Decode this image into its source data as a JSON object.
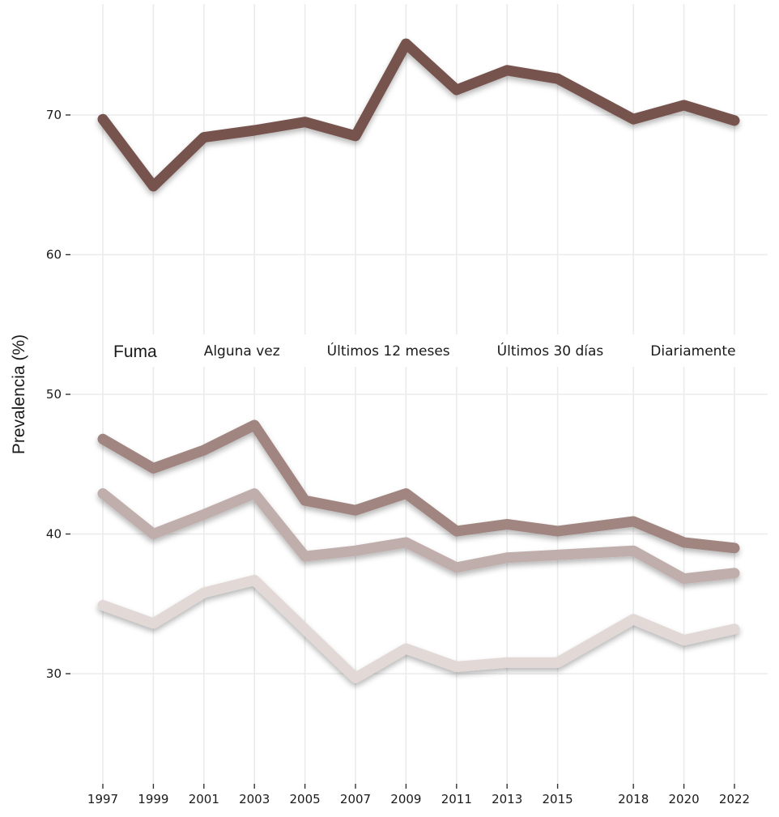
{
  "chart_data": {
    "type": "line",
    "title": "",
    "xlabel": "",
    "ylabel": "Prevalencia (%)",
    "ylim": [
      23,
      78
    ],
    "yticks": [
      30,
      40,
      50,
      60,
      70
    ],
    "xlim": [
      1997,
      2022
    ],
    "x": [
      1997,
      1999,
      2001,
      2003,
      2005,
      2007,
      2009,
      2011,
      2013,
      2015,
      2018,
      2020,
      2022
    ],
    "x_tick_labels": [
      "1997",
      "1999",
      "2001",
      "2003",
      "2005",
      "2007",
      "2009",
      "2011",
      "2013",
      "2015",
      "2018",
      "2020",
      "2022"
    ],
    "y_tick_labels": [
      "30",
      "40",
      "50",
      "60",
      "70"
    ],
    "grid": true,
    "legend": {
      "title": "Fuma",
      "placement": "center"
    },
    "series": [
      {
        "name": "Alguna vez",
        "color": "#76534e",
        "values": [
          69.7,
          64.9,
          68.4,
          68.9,
          69.5,
          68.5,
          75.1,
          71.8,
          73.2,
          72.6,
          69.7,
          70.7,
          69.6
        ]
      },
      {
        "name": "Últimos 12 meses",
        "color": "#a08580",
        "values": [
          46.8,
          44.7,
          46.0,
          47.8,
          42.4,
          41.7,
          42.9,
          40.2,
          40.7,
          40.2,
          40.9,
          39.4,
          39.0
        ]
      },
      {
        "name": "Últimos 30 días",
        "color": "#bfaeab",
        "values": [
          42.9,
          40.0,
          41.4,
          42.9,
          38.4,
          38.8,
          39.4,
          37.6,
          38.3,
          38.5,
          38.8,
          36.8,
          37.2
        ]
      },
      {
        "name": "Diariamente",
        "color": "#e2d8d6",
        "values": [
          34.9,
          33.6,
          35.8,
          36.7,
          33.2,
          29.7,
          31.8,
          30.5,
          30.8,
          30.8,
          33.9,
          32.4,
          33.2
        ]
      }
    ]
  }
}
